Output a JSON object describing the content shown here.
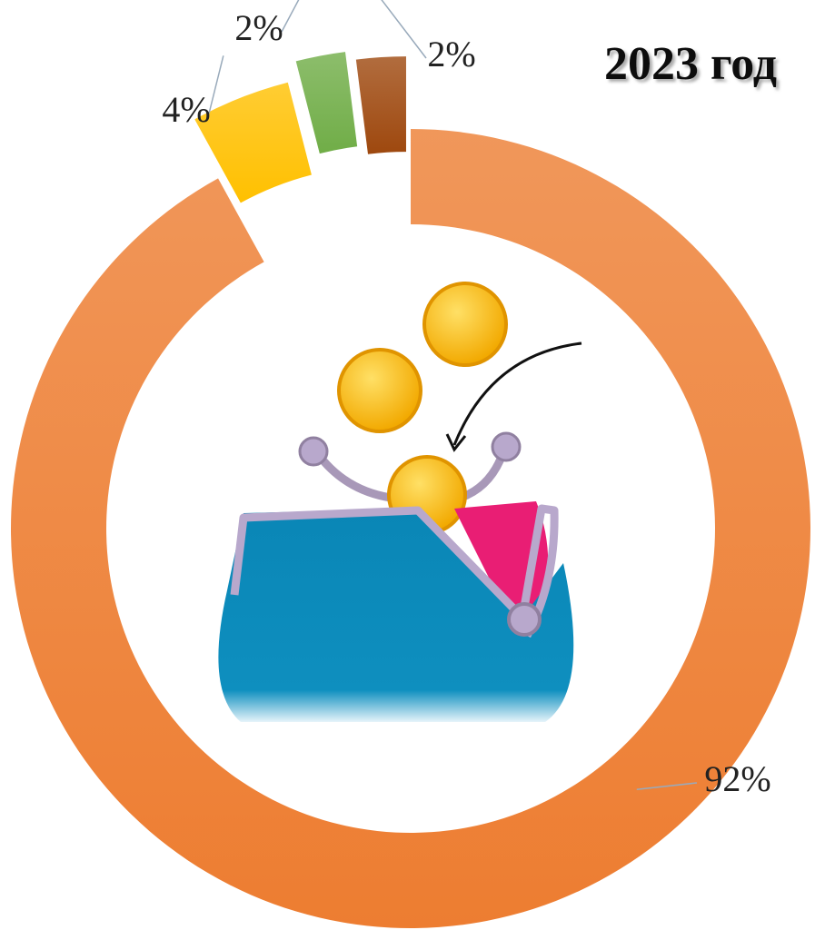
{
  "chart_data": {
    "type": "donut",
    "title": "2023 год",
    "categories": [
      null,
      null,
      null,
      null
    ],
    "values": [
      92,
      4,
      2,
      2
    ],
    "value_labels": [
      "92%",
      "4%",
      "2%",
      "2%"
    ],
    "colors": [
      "#ed7d31",
      "#ffc000",
      "#70ad47",
      "#9e480e"
    ]
  }
}
